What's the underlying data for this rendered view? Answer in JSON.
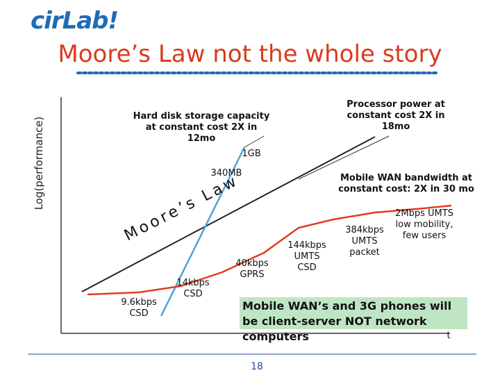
{
  "header": {
    "logo": "cirLab!",
    "title": "Moore’s Law not the whole story"
  },
  "axes": {
    "ylabel": "Log(performance)",
    "xlabel": "t"
  },
  "lines": {
    "moore_label": "Moore’s Law",
    "moore_color": "#222222",
    "disk_color": "#4aa3df",
    "wan_color": "#e23b1e"
  },
  "annotations": {
    "disk": "Hard disk storage capacity at constant cost 2X in 12mo",
    "processor": "Processor power at constant cost 2X in 18mo",
    "wan": "Mobile WAN bandwidth at constant cost: 2X in 30 mo",
    "gb": "1GB",
    "mb": "340MB",
    "csd96": "9.6kbps CSD",
    "csd14": "14kbps CSD",
    "gprs": "40kbps GPRS",
    "umts144": "144kbps UMTS CSD",
    "umts384": "384kbps UMTS packet",
    "umts2m": "2Mbps UMTS low mobility, few users",
    "callout": "Mobile WAN’s and 3G phones will be client-server NOT network computers"
  },
  "footer": {
    "page_number": "18"
  }
}
